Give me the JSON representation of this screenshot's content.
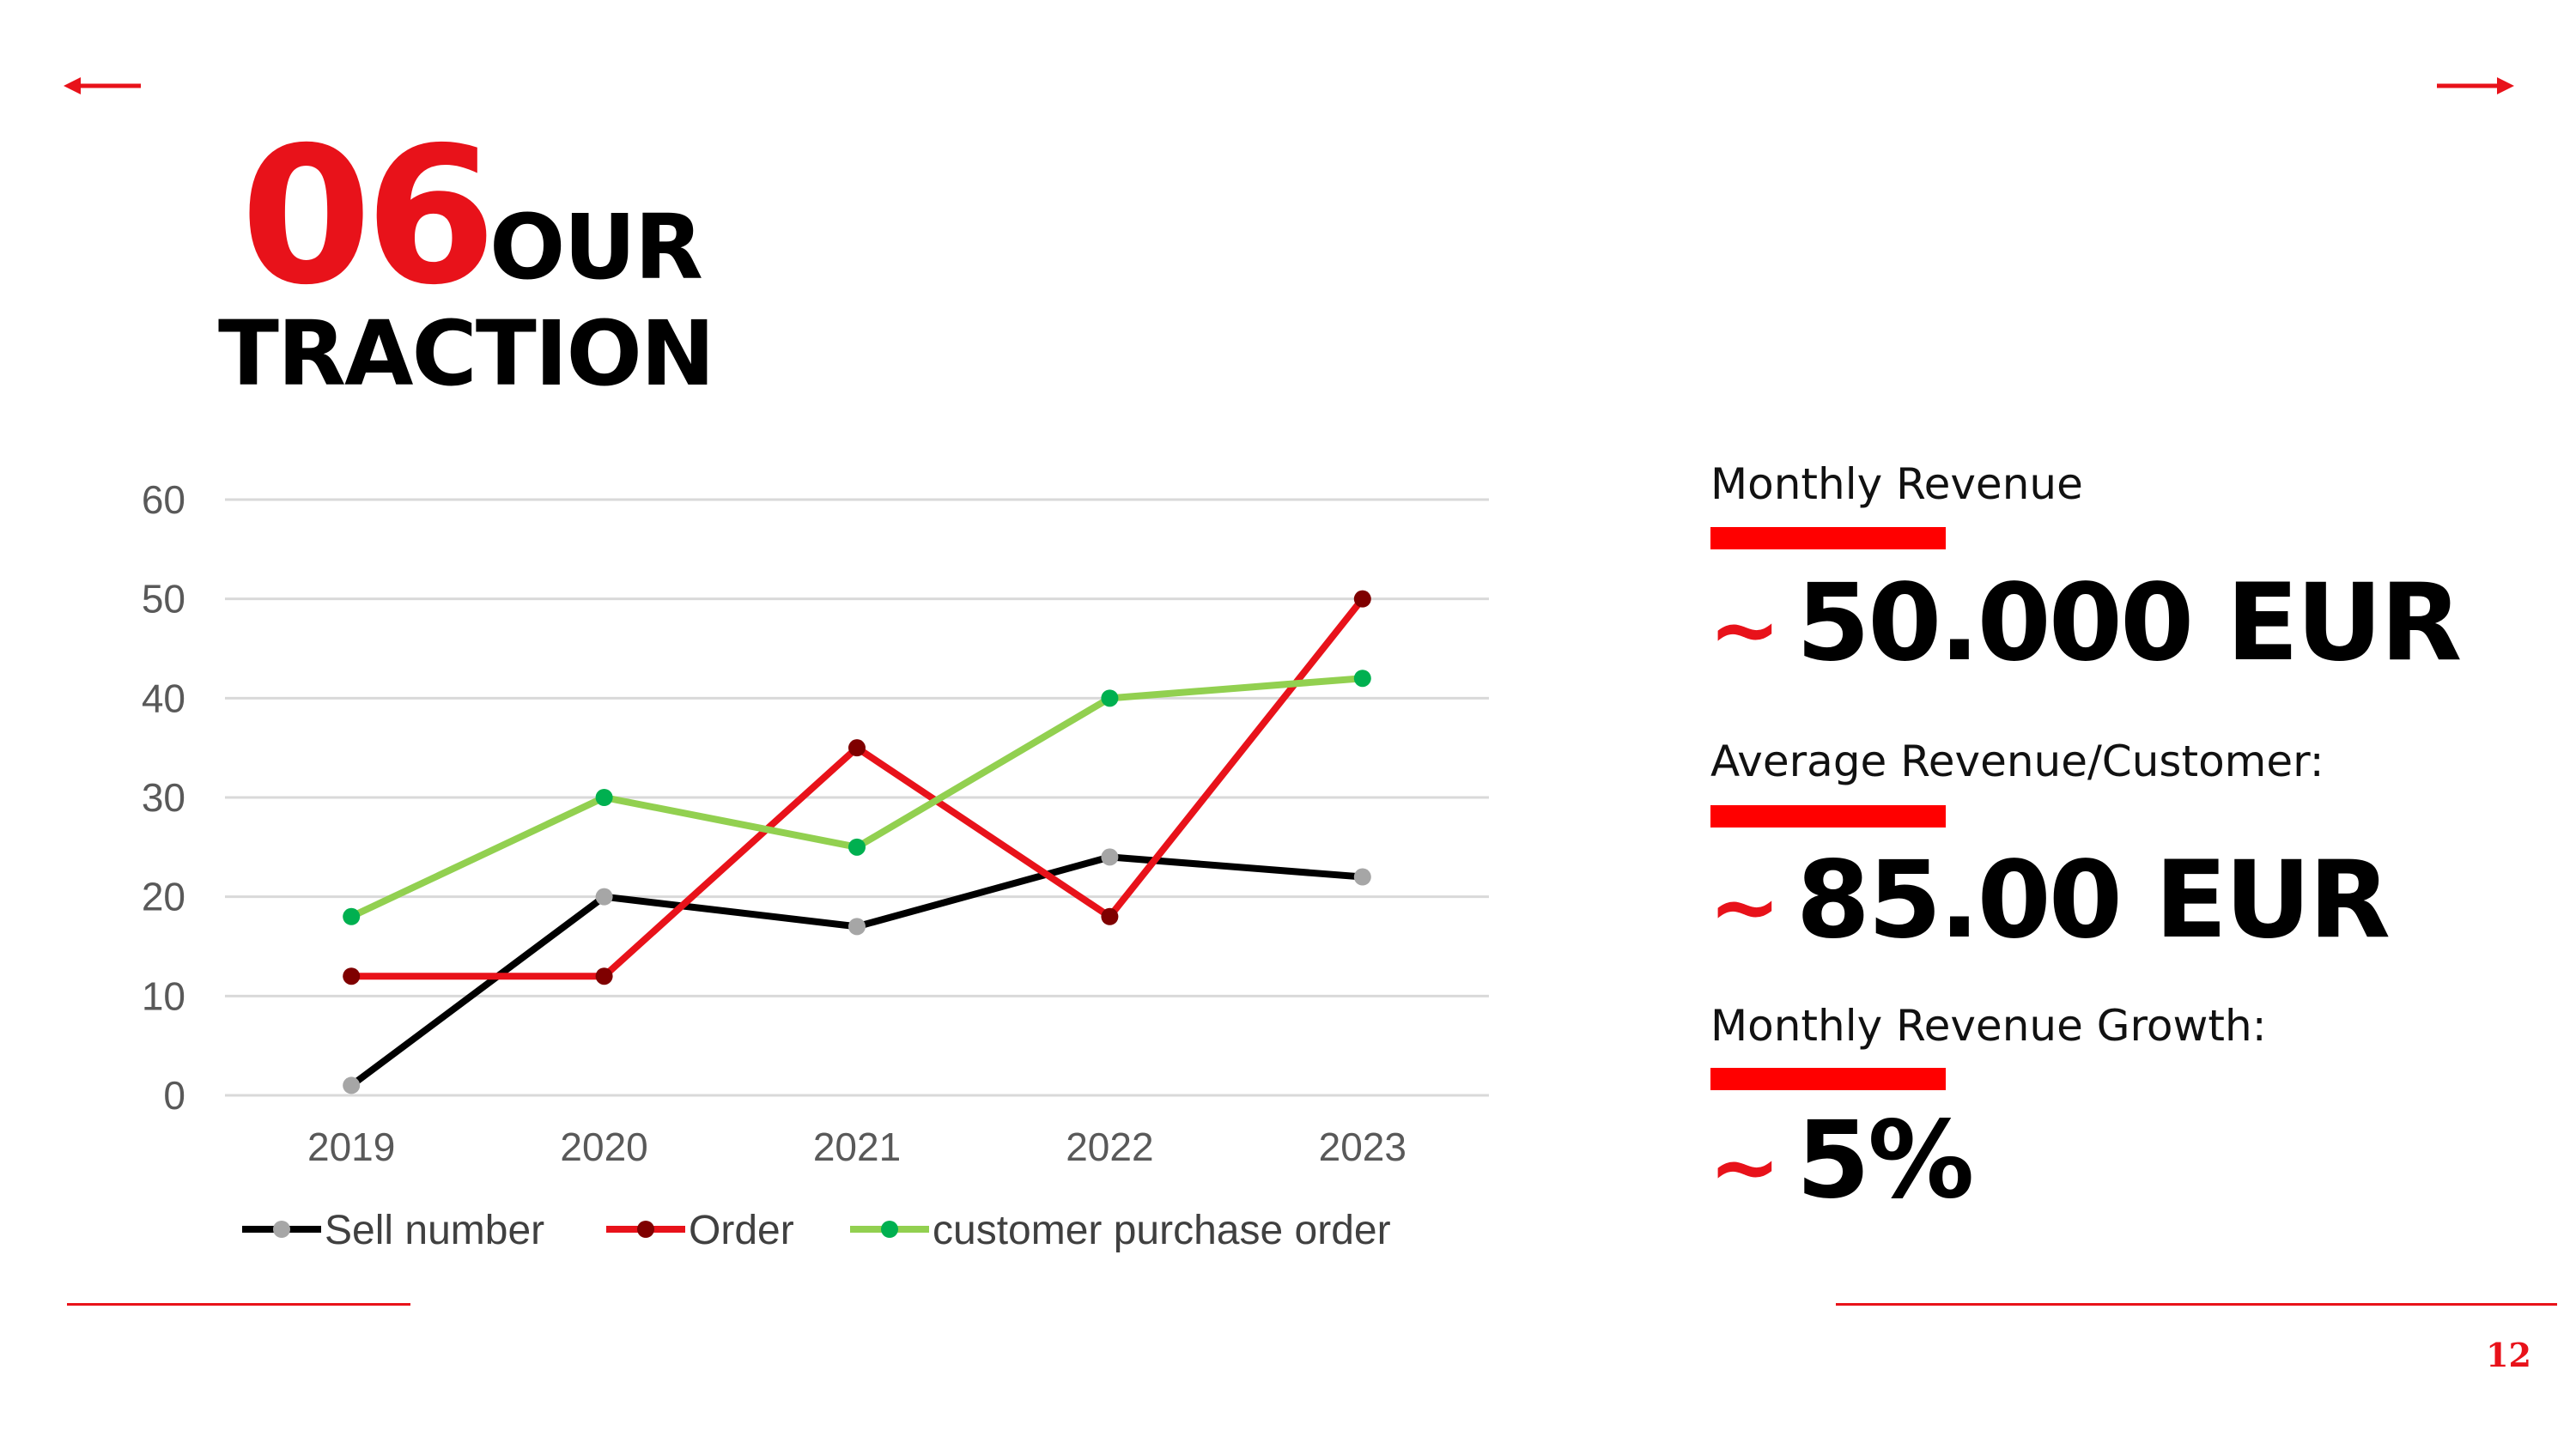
{
  "slide": {
    "number_label": "06",
    "title_word1": "OUR",
    "title_word2": "TRACTION",
    "page_number": "12",
    "accent_color": "#e8121a"
  },
  "nav": {
    "prev_icon": "arrow-left-icon",
    "next_icon": "arrow-right-icon"
  },
  "metrics": [
    {
      "label": "Monthly Revenue",
      "tilde": "~",
      "value": "50.000 EUR"
    },
    {
      "label": "Average Revenue/Customer:",
      "tilde": "~",
      "value": "85.00 EUR"
    },
    {
      "label": "Monthly Revenue Growth:",
      "tilde": "~",
      "value": "5%"
    }
  ],
  "chart_data": {
    "type": "line",
    "categories": [
      "2019",
      "2020",
      "2021",
      "2022",
      "2023"
    ],
    "series": [
      {
        "name": "Sell number",
        "values": [
          1,
          20,
          17,
          24,
          22
        ],
        "color": "#000000",
        "marker_color": "#a6a6a6"
      },
      {
        "name": "Order",
        "values": [
          12,
          12,
          35,
          18,
          50
        ],
        "color": "#e8121a",
        "marker_color": "#7f0000"
      },
      {
        "name": "customer purchase order",
        "values": [
          18,
          30,
          25,
          40,
          42
        ],
        "color": "#92d050",
        "marker_color": "#00b050"
      }
    ],
    "ylim": [
      0,
      60
    ],
    "yticks": [
      "0",
      "10",
      "20",
      "30",
      "40",
      "50",
      "60"
    ],
    "grid": true,
    "legend_position": "bottom"
  }
}
